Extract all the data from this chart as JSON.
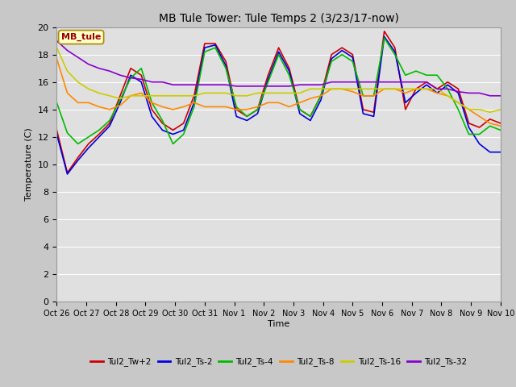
{
  "title": "MB Tule Tower: Tule Temps 2 (3/23/17-now)",
  "ylabel": "Temperature (C)",
  "xlabel": "Time",
  "annotation": "MB_tule",
  "ylim": [
    0,
    20
  ],
  "yticks": [
    0,
    2,
    4,
    6,
    8,
    10,
    12,
    14,
    16,
    18,
    20
  ],
  "xtick_labels": [
    "Oct 26",
    "Oct 27",
    "Oct 28",
    "Oct 29",
    "Oct 30",
    "Oct 31",
    "Nov 1",
    "Nov 2",
    "Nov 3",
    "Nov 4",
    "Nov 5",
    "Nov 6",
    "Nov 7",
    "Nov 8",
    "Nov 9",
    "Nov 10"
  ],
  "fig_bg_color": "#c8c8c8",
  "plot_bg_color": "#e0e0e0",
  "series": {
    "Tul2_Tw+2": {
      "color": "#cc0000",
      "lw": 1.2,
      "y": [
        12.5,
        9.4,
        10.5,
        11.5,
        12.2,
        13.0,
        15.0,
        17.0,
        16.5,
        14.0,
        13.0,
        12.5,
        13.0,
        15.0,
        18.8,
        18.8,
        17.5,
        14.0,
        13.5,
        14.0,
        16.5,
        18.5,
        17.0,
        14.0,
        13.5,
        15.0,
        18.0,
        18.5,
        18.0,
        14.0,
        13.8,
        19.7,
        18.5,
        14.0,
        15.5,
        16.0,
        15.5,
        16.0,
        15.5,
        13.0,
        12.7,
        13.3,
        13.0
      ]
    },
    "Tul2_Ts-2": {
      "color": "#0000dd",
      "lw": 1.2,
      "y": [
        12.2,
        9.3,
        10.3,
        11.2,
        12.0,
        12.8,
        14.5,
        16.5,
        16.0,
        13.5,
        12.5,
        12.2,
        12.5,
        14.5,
        18.5,
        18.7,
        17.2,
        13.5,
        13.2,
        13.7,
        16.2,
        18.2,
        16.8,
        13.7,
        13.2,
        14.7,
        17.7,
        18.3,
        17.8,
        13.7,
        13.5,
        19.3,
        18.2,
        14.5,
        15.2,
        15.8,
        15.2,
        15.8,
        15.2,
        12.7,
        11.5,
        10.9,
        10.9
      ]
    },
    "Tul2_Ts-4": {
      "color": "#00bb00",
      "lw": 1.2,
      "y": [
        14.5,
        12.3,
        11.5,
        12.0,
        12.5,
        13.2,
        14.7,
        16.3,
        17.0,
        14.5,
        13.2,
        11.5,
        12.2,
        14.2,
        18.2,
        18.5,
        17.0,
        14.2,
        13.5,
        14.0,
        16.0,
        18.0,
        16.5,
        14.0,
        13.5,
        15.0,
        17.5,
        18.0,
        17.5,
        15.0,
        15.0,
        19.2,
        18.0,
        16.5,
        16.8,
        16.5,
        16.5,
        15.5,
        14.0,
        12.2,
        12.2,
        12.8,
        12.5
      ]
    },
    "Tul2_Ts-8": {
      "color": "#ff8800",
      "lw": 1.2,
      "y": [
        17.7,
        15.2,
        14.5,
        14.5,
        14.2,
        14.0,
        14.3,
        15.0,
        15.2,
        14.5,
        14.2,
        14.0,
        14.2,
        14.5,
        14.2,
        14.2,
        14.2,
        14.0,
        14.0,
        14.2,
        14.5,
        14.5,
        14.2,
        14.5,
        14.8,
        15.0,
        15.5,
        15.5,
        15.3,
        15.0,
        15.0,
        15.5,
        15.5,
        15.2,
        15.5,
        15.5,
        15.2,
        15.0,
        14.5,
        14.0,
        13.5,
        13.0,
        12.8
      ]
    },
    "Tul2_Ts-16": {
      "color": "#cccc00",
      "lw": 1.2,
      "y": [
        18.5,
        16.8,
        16.0,
        15.5,
        15.2,
        15.0,
        14.8,
        15.0,
        15.0,
        15.0,
        15.0,
        15.0,
        15.0,
        15.0,
        15.2,
        15.2,
        15.2,
        15.0,
        15.0,
        15.2,
        15.2,
        15.2,
        15.2,
        15.2,
        15.5,
        15.5,
        15.5,
        15.5,
        15.5,
        15.5,
        15.5,
        15.5,
        15.5,
        15.5,
        15.5,
        15.5,
        15.5,
        15.0,
        14.5,
        14.0,
        14.0,
        13.8,
        14.0
      ]
    },
    "Tul2_Ts-32": {
      "color": "#8800cc",
      "lw": 1.2,
      "y": [
        19.0,
        18.3,
        17.8,
        17.3,
        17.0,
        16.8,
        16.5,
        16.3,
        16.2,
        16.0,
        16.0,
        15.8,
        15.8,
        15.8,
        15.8,
        15.8,
        15.8,
        15.7,
        15.7,
        15.7,
        15.7,
        15.7,
        15.7,
        15.8,
        15.8,
        15.8,
        16.0,
        16.0,
        16.0,
        16.0,
        16.0,
        16.0,
        16.0,
        16.0,
        16.0,
        16.0,
        15.5,
        15.5,
        15.3,
        15.2,
        15.2,
        15.0,
        15.0
      ]
    }
  }
}
